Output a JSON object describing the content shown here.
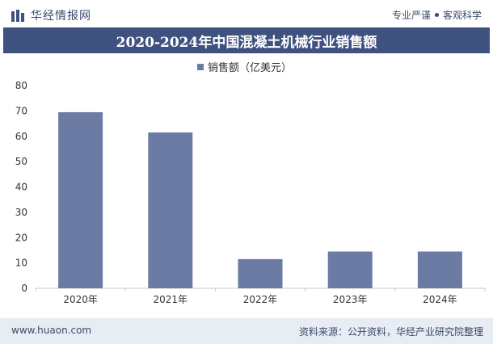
{
  "header": {
    "brand": "华经情报网",
    "tagline_left": "专业严谨",
    "tagline_right": "客观科学"
  },
  "colors": {
    "bar": "#6b7ba3",
    "title_bg": "#3f527f"
  },
  "chart_data": {
    "type": "bar",
    "title": "2020-2024年中国混凝土机械行业销售额",
    "legend": "销售额（亿美元）",
    "categories": [
      "2020年",
      "2021年",
      "2022年",
      "2023年",
      "2024年"
    ],
    "series": [
      {
        "name": "销售额（亿美元）",
        "values": [
          69.5,
          61.5,
          11.5,
          14.5,
          14.5
        ]
      }
    ],
    "ylim": [
      0,
      80
    ],
    "yticks": [
      0,
      10,
      20,
      30,
      40,
      50,
      60,
      70,
      80
    ],
    "xlabel": "",
    "ylabel": ""
  },
  "footer": {
    "url": "www.huaon.com",
    "source": "资料来源：公开资料，华经产业研究院整理"
  }
}
